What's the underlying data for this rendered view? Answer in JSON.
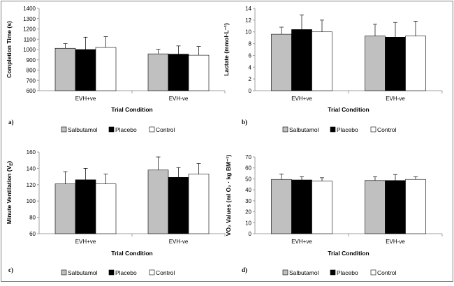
{
  "chart_data": [
    {
      "type": "bar",
      "panel_label": "a)",
      "categories": [
        "EVH+ve",
        "EVH-ve"
      ],
      "series": [
        {
          "name": "Salbutamol",
          "values": [
            1012,
            958
          ],
          "error": [
            45,
            45
          ]
        },
        {
          "name": "Placebo",
          "values": [
            1000,
            955
          ],
          "error": [
            120,
            80
          ]
        },
        {
          "name": "Control",
          "values": [
            1020,
            945
          ],
          "error": [
            105,
            85
          ]
        }
      ],
      "xlabel": "Trial Condition",
      "ylabel": "Completion Time (s)",
      "ylim": [
        600,
        1400
      ],
      "yticks": [
        "600",
        "700",
        "800",
        "900",
        "1000",
        "1100",
        "1200",
        "1300",
        "1400"
      ],
      "grid": false,
      "legend": "bottom"
    },
    {
      "type": "bar",
      "panel_label": "b)",
      "categories": [
        "EVH+ve",
        "EVH-ve"
      ],
      "series": [
        {
          "name": "Salbutamol",
          "values": [
            9.6,
            9.3
          ],
          "error": [
            1.2,
            2.0
          ]
        },
        {
          "name": "Placebo",
          "values": [
            10.4,
            9.1
          ],
          "error": [
            2.5,
            2.5
          ]
        },
        {
          "name": "Control",
          "values": [
            10.0,
            9.3
          ],
          "error": [
            2.0,
            2.5
          ]
        }
      ],
      "xlabel": "Trial Condition",
      "ylabel": "Lactate (mmol·L⁻¹)",
      "ylim": [
        0,
        14
      ],
      "yticks": [
        "0",
        "2",
        "4",
        "6",
        "8",
        "10",
        "12",
        "14"
      ],
      "grid": false,
      "legend": "bottom"
    },
    {
      "type": "bar",
      "panel_label": "c)",
      "categories": [
        "EVH+ve",
        "EVH-ve"
      ],
      "series": [
        {
          "name": "Salbutamol",
          "values": [
            121,
            138
          ],
          "error": [
            15,
            16
          ]
        },
        {
          "name": "Placebo",
          "values": [
            126,
            129
          ],
          "error": [
            14,
            12
          ]
        },
        {
          "name": "Control",
          "values": [
            121,
            133
          ],
          "error": [
            12,
            13
          ]
        }
      ],
      "xlabel": "Trial Condition",
      "ylabel": "Minute Ventilation (V",
      "ylabel_sub": "E",
      "ylabel_end": ")",
      "ylim": [
        60,
        160
      ],
      "yticks": [
        "60",
        "80",
        "100",
        "120",
        "140",
        "160"
      ],
      "grid": false,
      "legend": "bottom"
    },
    {
      "type": "bar",
      "panel_label": "d)",
      "categories": [
        "EVH+ve",
        "EVH-ve"
      ],
      "series": [
        {
          "name": "Salbutamol",
          "values": [
            49.5,
            48.5
          ],
          "error": [
            5,
            3.5
          ]
        },
        {
          "name": "Placebo",
          "values": [
            49,
            48.5
          ],
          "error": [
            3,
            5.5
          ]
        },
        {
          "name": "Control",
          "values": [
            48,
            49.5
          ],
          "error": [
            3,
            2.5
          ]
        }
      ],
      "xlabel": "Trial Condition",
      "ylabel": "VO₂ Values (ml O₂ · kg BM⁻¹)",
      "ylim": [
        0,
        70
      ],
      "yticks": [
        "0",
        "10",
        "20",
        "30",
        "40",
        "50",
        "60",
        "70"
      ],
      "grid": false,
      "legend": "bottom"
    }
  ],
  "colors": {
    "Salbutamol": "#c0c0c0",
    "Placebo": "#000000",
    "Control": "#ffffff",
    "frame": "#808080",
    "axis": "#a0a0a0"
  }
}
